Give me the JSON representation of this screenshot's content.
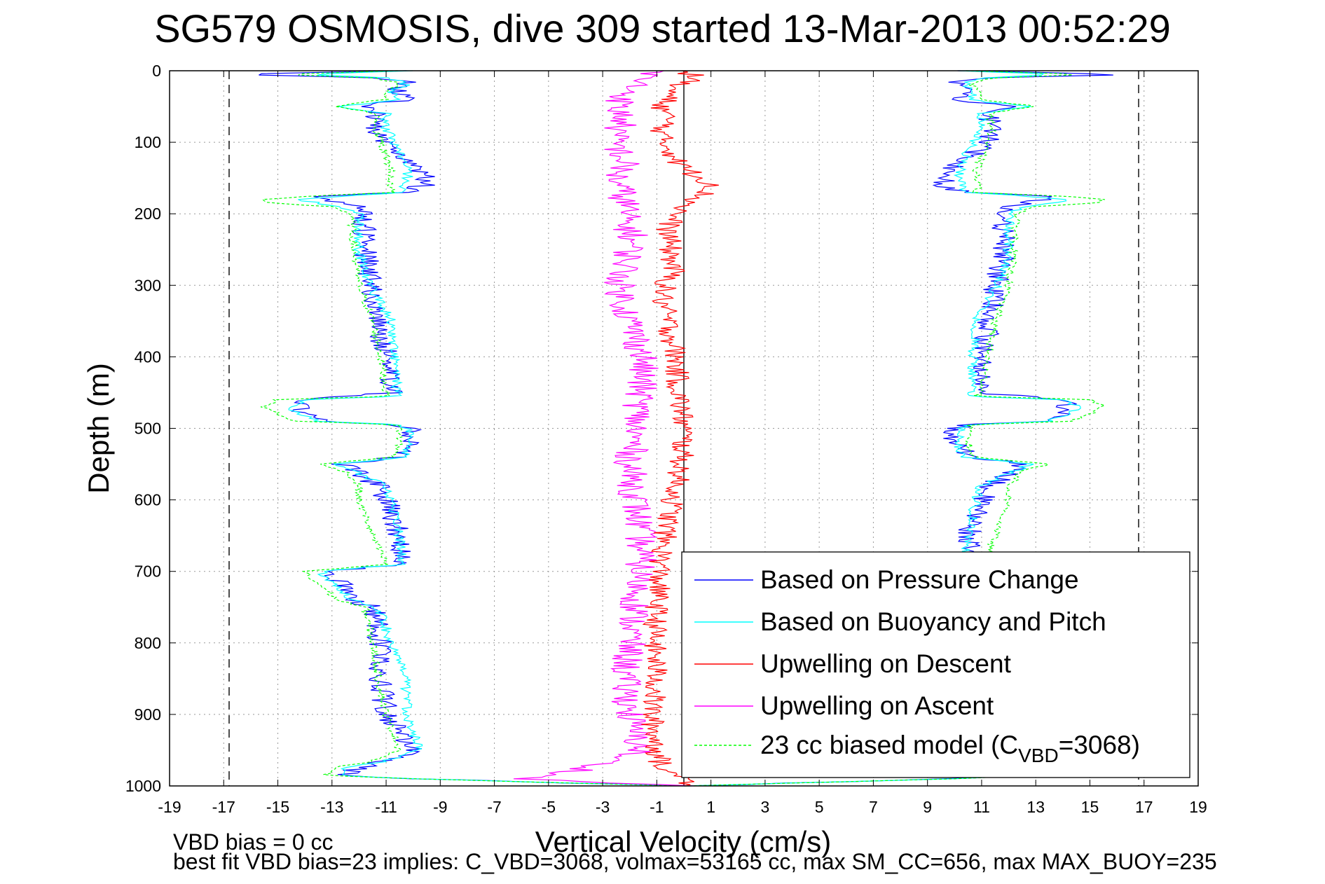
{
  "chart_data": {
    "type": "line",
    "title": "SG579 OSMOSIS, dive 309 started 13-Mar-2013 00:52:29",
    "xlabel": "Vertical Velocity (cm/s)",
    "ylabel": "Depth (m)",
    "xlim": [
      -19,
      19
    ],
    "ylim": [
      0,
      1000
    ],
    "y_reversed": true,
    "grid": true,
    "xticks": [
      -19,
      -17,
      -15,
      -13,
      -11,
      -9,
      -7,
      -5,
      -3,
      -1,
      1,
      3,
      5,
      7,
      9,
      11,
      13,
      15,
      17,
      19
    ],
    "yticks": [
      0,
      100,
      200,
      300,
      400,
      500,
      600,
      700,
      800,
      900,
      1000
    ],
    "legend_position": "bottom-right",
    "reference_lines": [
      {
        "x": 0,
        "style": "solid",
        "color": "#000000"
      },
      {
        "x": -16.8,
        "style": "dashed",
        "color": "#000000"
      },
      {
        "x": 16.8,
        "style": "dashed",
        "color": "#000000"
      }
    ],
    "series": [
      {
        "name": "Based on Pressure Change",
        "color": "#0000ff",
        "noise": 0.45,
        "mirror": true,
        "depth": [
          0,
          5,
          10,
          15,
          20,
          30,
          40,
          50,
          55,
          60,
          80,
          100,
          120,
          140,
          150,
          160,
          170,
          175,
          180,
          190,
          200,
          250,
          300,
          350,
          400,
          450,
          460,
          470,
          480,
          490,
          495,
          500,
          520,
          540,
          550,
          560,
          580,
          600,
          650,
          690,
          700,
          710,
          720,
          740,
          750,
          800,
          850,
          900,
          950,
          965,
          975,
          985,
          990,
          995,
          1000
        ],
        "velocity": [
          -10.5,
          -16.5,
          -11.5,
          -10,
          -10.6,
          -10.5,
          -10.2,
          -12,
          -11.6,
          -11.3,
          -11.4,
          -11.2,
          -10.6,
          -9.8,
          -9.6,
          -9.6,
          -10.3,
          -13.5,
          -13.3,
          -12.1,
          -11.8,
          -11.8,
          -11.5,
          -11.3,
          -11,
          -10.8,
          -14,
          -14.2,
          -14.1,
          -13.5,
          -10.5,
          -10,
          -10,
          -10.5,
          -12.6,
          -12.1,
          -11.3,
          -11,
          -10.5,
          -10.5,
          -13.3,
          -13,
          -12.5,
          -12.3,
          -11.5,
          -11.2,
          -11.2,
          -11,
          -10,
          -11,
          -12,
          -12.5,
          -10,
          -5,
          0
        ]
      },
      {
        "name": "Based on Buoyancy and Pitch",
        "color": "#00ffff",
        "noise": 0.2,
        "mirror": true,
        "depth": [
          0,
          5,
          10,
          15,
          20,
          30,
          40,
          45,
          50,
          55,
          60,
          80,
          100,
          120,
          140,
          150,
          160,
          170,
          175,
          180,
          190,
          200,
          250,
          300,
          350,
          400,
          450,
          455,
          460,
          470,
          480,
          490,
          495,
          500,
          520,
          540,
          550,
          560,
          580,
          600,
          650,
          690,
          700,
          710,
          720,
          740,
          750,
          800,
          850,
          900,
          950,
          965,
          975,
          985,
          990,
          995,
          1000
        ],
        "velocity": [
          -10,
          -14,
          -11,
          -10.5,
          -10.3,
          -10.8,
          -10.6,
          -11.5,
          -12.8,
          -11.8,
          -11,
          -11,
          -10.7,
          -10.4,
          -10.2,
          -10.2,
          -10.3,
          -10.4,
          -12.5,
          -14.3,
          -12.7,
          -12,
          -12,
          -11.6,
          -10.8,
          -10.7,
          -10.6,
          -10.5,
          -14,
          -14.6,
          -14.2,
          -13.5,
          -10.5,
          -10.2,
          -10.1,
          -10.3,
          -12.8,
          -12.2,
          -11,
          -10.8,
          -10.5,
          -10.4,
          -13.4,
          -13.2,
          -12.8,
          -12.3,
          -11.3,
          -10.8,
          -10.3,
          -10.2,
          -9.8,
          -11,
          -12.6,
          -12.8,
          -10,
          -5,
          0
        ]
      },
      {
        "name": "Upwelling on Descent",
        "color": "#ff0000",
        "noise": 0.45,
        "mirror": false,
        "depth": [
          0,
          10,
          20,
          30,
          50,
          70,
          90,
          110,
          130,
          150,
          160,
          170,
          180,
          200,
          220,
          250,
          280,
          300,
          320,
          350,
          400,
          450,
          500,
          550,
          600,
          650,
          700,
          750,
          800,
          850,
          900,
          950,
          980,
          990,
          995,
          1000
        ],
        "velocity": [
          0,
          0.5,
          -0.3,
          -0.5,
          -0.8,
          -0.6,
          -0.9,
          -0.5,
          -0.2,
          0.6,
          1.2,
          0.8,
          0.4,
          -0.3,
          -0.6,
          -0.5,
          -0.4,
          -0.7,
          -0.8,
          -0.6,
          -0.3,
          -0.2,
          0,
          -0.1,
          -0.4,
          -0.7,
          -0.9,
          -1,
          -1.1,
          -1,
          -1.2,
          -1,
          -0.8,
          0.6,
          0.2,
          0
        ]
      },
      {
        "name": "Upwelling on Ascent",
        "color": "#ff00ff",
        "noise": 0.6,
        "mirror": false,
        "depth": [
          0,
          10,
          20,
          30,
          40,
          50,
          70,
          90,
          110,
          130,
          150,
          170,
          190,
          210,
          230,
          250,
          280,
          300,
          350,
          400,
          450,
          500,
          550,
          600,
          650,
          700,
          750,
          800,
          850,
          900,
          950,
          980,
          990,
          995,
          1000
        ],
        "velocity": [
          -1,
          -1.5,
          -1.8,
          -2,
          -2.3,
          -2.5,
          -2.2,
          -2.6,
          -2.4,
          -2.2,
          -2.5,
          -2.3,
          -2.1,
          -2.2,
          -1.9,
          -2,
          -2.2,
          -2.4,
          -2,
          -1.5,
          -1.6,
          -1.8,
          -2,
          -1.8,
          -1.6,
          -1.6,
          -1.8,
          -2,
          -2.2,
          -2,
          -1.6,
          -4,
          -6,
          -3,
          0
        ]
      },
      {
        "name": "23 cc biased model (C_VBD=3068)",
        "color": "#00ff00",
        "noise": 0.15,
        "dashed": true,
        "mirror": true,
        "depth": [
          0,
          5,
          10,
          15,
          20,
          30,
          40,
          45,
          50,
          55,
          60,
          80,
          100,
          120,
          140,
          150,
          160,
          170,
          175,
          180,
          185,
          190,
          200,
          250,
          300,
          350,
          400,
          450,
          455,
          460,
          470,
          480,
          490,
          495,
          500,
          520,
          540,
          550,
          560,
          580,
          600,
          650,
          690,
          700,
          710,
          720,
          740,
          750,
          800,
          850,
          900,
          950,
          965,
          975,
          985,
          990,
          995,
          1000
        ],
        "velocity": [
          -10.5,
          -15,
          -11.5,
          -10.7,
          -10.6,
          -11,
          -11,
          -12,
          -13,
          -12,
          -11.3,
          -11.4,
          -11.2,
          -11,
          -10.8,
          -10.8,
          -10.9,
          -10.8,
          -13.8,
          -15.5,
          -15.3,
          -13,
          -12.3,
          -12.2,
          -12,
          -11.5,
          -11.2,
          -11,
          -10.8,
          -15,
          -15.5,
          -15,
          -14.3,
          -10.6,
          -10.5,
          -10.5,
          -10.7,
          -13.5,
          -12.5,
          -12,
          -12,
          -11.5,
          -11,
          -14,
          -13.8,
          -13.4,
          -12.8,
          -11.8,
          -11.5,
          -11.3,
          -11,
          -10.5,
          -11.5,
          -13,
          -13.2,
          -10,
          -5,
          0
        ]
      }
    ]
  },
  "legend": {
    "items": [
      {
        "label": "Based on Pressure Change",
        "color": "#0000ff"
      },
      {
        "label": "Based on Buoyancy and Pitch",
        "color": "#00ffff"
      },
      {
        "label": "Upwelling on Descent",
        "color": "#ff0000"
      },
      {
        "label": "Upwelling on Ascent",
        "color": "#ff00ff"
      },
      {
        "label": "23 cc biased model (C",
        "sub": "VBD",
        "suffix": "=3068)",
        "color": "#00ff00",
        "dashed": true
      }
    ]
  },
  "footer": {
    "line1": "VBD bias = 0 cc",
    "line2": "best fit VBD bias=23 implies: C_VBD=3068, volmax=53165 cc, max SM_CC=656, max MAX_BUOY=235"
  }
}
